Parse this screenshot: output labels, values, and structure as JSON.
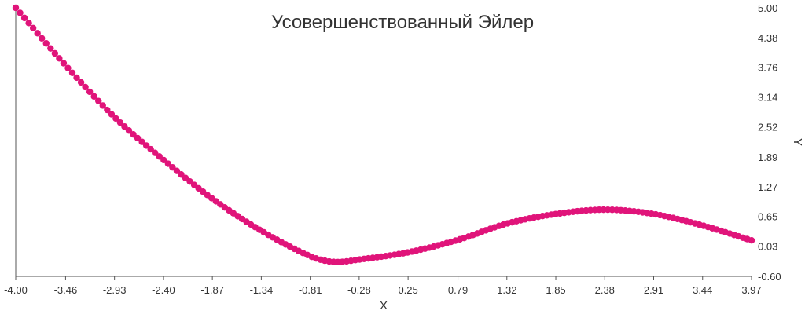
{
  "chart_data": {
    "type": "scatter",
    "title": "Усовершенствованный Эйлер",
    "xlabel": "X",
    "ylabel": "Y",
    "xlim": [
      -4.0,
      3.97
    ],
    "ylim": [
      -0.6,
      5.0
    ],
    "x_ticks": [
      "-4.00",
      "-3.46",
      "-2.93",
      "-2.40",
      "-1.87",
      "-1.34",
      "-0.81",
      "-0.28",
      "0.25",
      "0.79",
      "1.32",
      "1.85",
      "2.38",
      "2.91",
      "3.44",
      "3.97"
    ],
    "y_ticks": [
      "5.00",
      "4.38",
      "3.76",
      "3.14",
      "2.52",
      "1.89",
      "1.27",
      "0.65",
      "0.03",
      "-0.60"
    ],
    "grid": false,
    "legend": "none",
    "colors": {
      "points": "#E0147A",
      "axis": "#555555",
      "text": "#333333"
    },
    "control_points": [
      {
        "x": -4.0,
        "y": 5.0
      },
      {
        "x": -3.46,
        "y": 3.8
      },
      {
        "x": -2.93,
        "y": 2.72
      },
      {
        "x": -2.4,
        "y": 1.83
      },
      {
        "x": -1.87,
        "y": 1.02
      },
      {
        "x": -1.34,
        "y": 0.35
      },
      {
        "x": -0.81,
        "y": -0.18
      },
      {
        "x": -0.55,
        "y": -0.3
      },
      {
        "x": -0.28,
        "y": -0.25
      },
      {
        "x": 0.25,
        "y": -0.1
      },
      {
        "x": 0.79,
        "y": 0.16
      },
      {
        "x": 1.32,
        "y": 0.5
      },
      {
        "x": 1.85,
        "y": 0.7
      },
      {
        "x": 2.38,
        "y": 0.79
      },
      {
        "x": 2.91,
        "y": 0.7
      },
      {
        "x": 3.44,
        "y": 0.46
      },
      {
        "x": 3.97,
        "y": 0.15
      }
    ]
  }
}
